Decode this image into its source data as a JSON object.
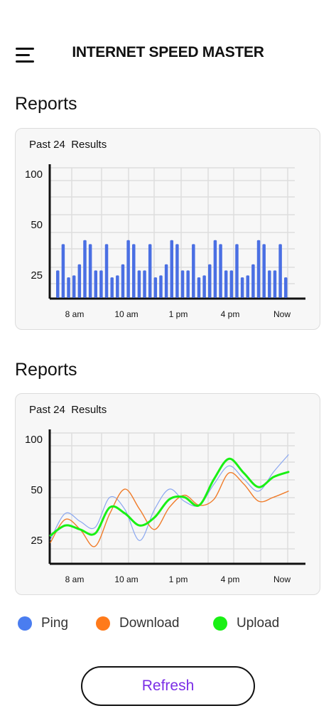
{
  "header": {
    "title": "INTERNET SPEED MASTER"
  },
  "sections": [
    {
      "title": "Reports",
      "card_title": "Past 24  Results"
    },
    {
      "title": "Reports",
      "card_title": "Past 24  Results"
    }
  ],
  "chart_data": [
    {
      "type": "bar",
      "y_ticks": [
        100,
        50,
        25
      ],
      "x_ticks": [
        "8 am",
        "10 am",
        "1 pm",
        "4 pm",
        "Now"
      ],
      "ylim": [
        0,
        100
      ],
      "grid": true,
      "color": "#4a6fe3",
      "values": [
        27,
        40,
        22,
        24,
        30,
        42,
        40,
        27,
        27,
        40,
        22,
        24,
        30,
        42,
        40,
        27,
        27,
        40,
        22,
        24,
        30,
        42,
        40,
        27,
        27,
        40,
        22,
        24,
        30,
        42,
        40,
        27,
        27,
        40,
        22,
        24,
        30,
        42,
        40,
        27,
        27,
        40,
        22
      ]
    },
    {
      "type": "line",
      "y_ticks": [
        100,
        50,
        25
      ],
      "x_ticks": [
        "8 am",
        "10 am",
        "1 pm",
        "4 pm",
        "Now"
      ],
      "ylim": [
        0,
        100
      ],
      "grid": true,
      "x": [
        0,
        1,
        2,
        3,
        4,
        5,
        6,
        7,
        8,
        9,
        10,
        11,
        12,
        13,
        14,
        15,
        16
      ],
      "series": [
        {
          "name": "Ping",
          "color": "#8aa7f0",
          "width": 1.2,
          "values": [
            25,
            38,
            34,
            31,
            46,
            40,
            24,
            40,
            50,
            44,
            42,
            55,
            73,
            60,
            49,
            67,
            84
          ]
        },
        {
          "name": "Download",
          "color": "#f07c2a",
          "width": 1.4,
          "values": [
            22,
            35,
            30,
            18,
            38,
            50,
            40,
            30,
            41,
            47,
            42,
            45,
            66,
            55,
            44,
            46,
            49
          ]
        },
        {
          "name": "Upload",
          "color": "#19f014",
          "width": 3,
          "values": [
            27,
            32,
            30,
            28,
            41,
            38,
            32,
            36,
            45,
            46,
            42,
            60,
            80,
            66,
            52,
            62,
            67
          ]
        }
      ]
    }
  ],
  "legend": [
    {
      "label": "Ping",
      "color": "#4a7df0"
    },
    {
      "label": "Download",
      "color": "#ff7a1a"
    },
    {
      "label": "Upload",
      "color": "#19f014"
    }
  ],
  "refresh_label": "Refresh"
}
